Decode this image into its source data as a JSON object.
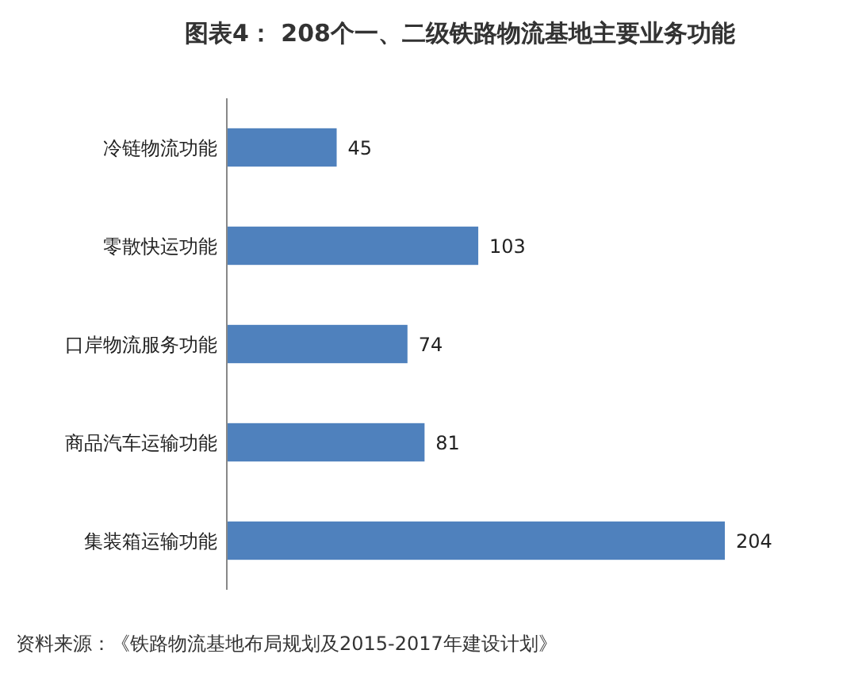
{
  "chart_data": {
    "type": "bar",
    "orientation": "horizontal",
    "title": "图表4： 208个一、二级铁路物流基地主要业务功能",
    "categories": [
      "冷链物流功能",
      "零散快运功能",
      "口岸物流服务功能",
      "商品汽车运输功能",
      "集装箱运输功能"
    ],
    "values": [
      45,
      103,
      74,
      81,
      204
    ],
    "color": "#4f81bd",
    "data_labels": true,
    "annotations": [
      "资料来源：《铁路物流基地布局规划及2015-2017年建设计划》"
    ]
  }
}
